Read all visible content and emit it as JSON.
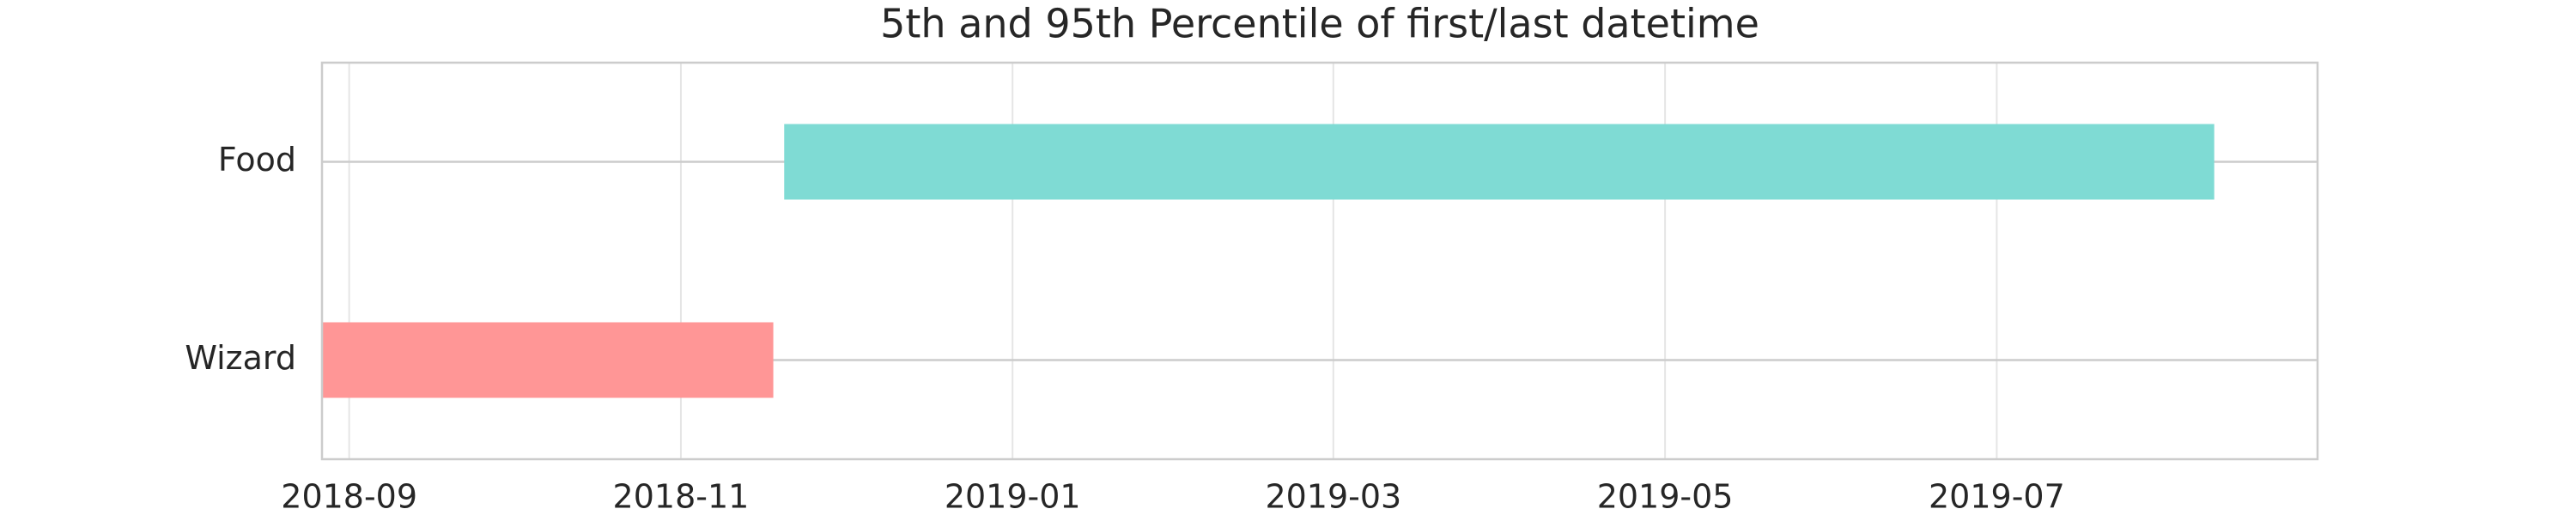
{
  "chart_data": {
    "type": "gantt",
    "title": "5th and 95th Percentile of first/last datetime",
    "categories": [
      "Food",
      "Wizard"
    ],
    "start": [
      "2018-11-20",
      "2018-08-27"
    ],
    "end": [
      "2019-08-10",
      "2018-11-18"
    ],
    "colors": [
      "#7fdbd4",
      "#ff9696"
    ],
    "xlim": [
      "2018-08-27",
      "2019-08-29"
    ],
    "xticks": [
      {
        "value": "2018-09-01",
        "label": "2018-09"
      },
      {
        "value": "2018-11-01",
        "label": "2018-11"
      },
      {
        "value": "2019-01-01",
        "label": "2019-01"
      },
      {
        "value": "2019-03-01",
        "label": "2019-03"
      },
      {
        "value": "2019-05-01",
        "label": "2019-05"
      },
      {
        "value": "2019-07-01",
        "label": "2019-07"
      }
    ],
    "grid": true
  }
}
